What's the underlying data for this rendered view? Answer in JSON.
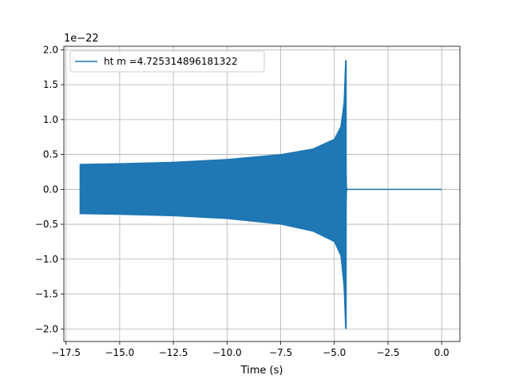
{
  "chart_data": {
    "type": "line",
    "title": "",
    "xlabel": "Time (s)",
    "ylabel": "",
    "y_multiplier_label": "1e−22",
    "xlim": [
      -17.6,
      0.85
    ],
    "ylim": [
      -2.18,
      2.05
    ],
    "x_ticks": [
      -17.5,
      -15.0,
      -12.5,
      -10.0,
      -7.5,
      -5.0,
      -2.5,
      0.0
    ],
    "x_tick_labels": [
      "−17.5",
      "−15.0",
      "−12.5",
      "−10.0",
      "−7.5",
      "−5.0",
      "−2.5",
      "0.0"
    ],
    "y_ticks": [
      -2.0,
      -1.5,
      -1.0,
      -0.5,
      0.0,
      0.5,
      1.0,
      1.5,
      2.0
    ],
    "y_tick_labels": [
      "−2.0",
      "−1.5",
      "−1.0",
      "−0.5",
      "0.0",
      "0.5",
      "1.0",
      "1.5",
      "2.0"
    ],
    "grid": true,
    "legend_position": "upper-left",
    "series": [
      {
        "name": "ht m =4.725314896181322",
        "color": "#1f77b4",
        "signal_start": -16.85,
        "signal_end": 0.0,
        "merger_time": -4.46,
        "envelope_upper": [
          [
            -16.85,
            0.36
          ],
          [
            -15.0,
            0.37
          ],
          [
            -12.5,
            0.39
          ],
          [
            -10.0,
            0.43
          ],
          [
            -7.5,
            0.5
          ],
          [
            -6.0,
            0.58
          ],
          [
            -5.0,
            0.72
          ],
          [
            -4.7,
            0.9
          ],
          [
            -4.55,
            1.25
          ],
          [
            -4.48,
            1.85
          ],
          [
            -4.44,
            0.05
          ],
          [
            -4.4,
            0.0
          ],
          [
            0.0,
            0.0
          ]
        ],
        "envelope_lower": [
          [
            -16.85,
            -0.35
          ],
          [
            -15.0,
            -0.36
          ],
          [
            -12.5,
            -0.38
          ],
          [
            -10.0,
            -0.42
          ],
          [
            -7.5,
            -0.5
          ],
          [
            -6.0,
            -0.6
          ],
          [
            -5.0,
            -0.75
          ],
          [
            -4.7,
            -0.95
          ],
          [
            -4.55,
            -1.4
          ],
          [
            -4.48,
            -2.0
          ],
          [
            -4.44,
            -0.05
          ],
          [
            -4.4,
            0.0
          ],
          [
            0.0,
            0.0
          ]
        ]
      }
    ]
  }
}
